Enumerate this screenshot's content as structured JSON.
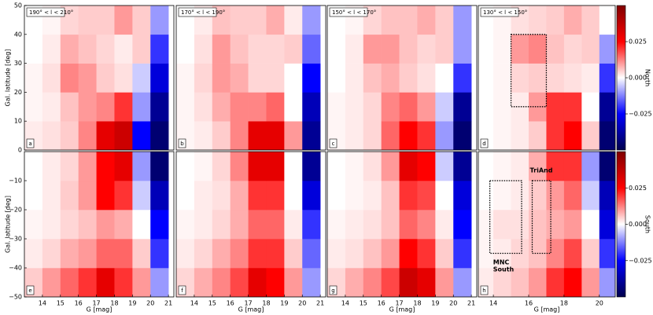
{
  "chart_data": [
    {
      "type": "heatmap",
      "title": "190° < l < 210°",
      "panel_label": "a",
      "ylabel": "Gal. latitude [deg]",
      "xlim": [
        13,
        21.3
      ],
      "ylim": [
        0,
        50
      ],
      "yticks": [
        0,
        10,
        20,
        30,
        40,
        50
      ],
      "x_edges": [
        13,
        14,
        15,
        16,
        17,
        18,
        19,
        20,
        21
      ],
      "y_edges": [
        0,
        10,
        20,
        30,
        40,
        50
      ],
      "z": [
        [
          0.002,
          0.003,
          0.005,
          0.012,
          0.03,
          0.035,
          -0.025,
          -0.045
        ],
        [
          0.001,
          0.002,
          0.006,
          0.01,
          0.012,
          0.02,
          -0.01,
          -0.04
        ],
        [
          0.001,
          0.003,
          0.012,
          0.01,
          0.005,
          0.003,
          -0.005,
          -0.03
        ],
        [
          0,
          0.002,
          0.008,
          0.006,
          0.004,
          0.002,
          0.005,
          -0.02
        ],
        [
          0,
          0.001,
          0.004,
          0.005,
          0.005,
          0.01,
          0.005,
          -0.01
        ]
      ]
    },
    {
      "type": "heatmap",
      "title": "170° < l < 190°",
      "panel_label": "b",
      "xlim": [
        13,
        21.3
      ],
      "ylim": [
        0,
        50
      ],
      "x_edges": [
        13,
        14,
        15,
        16,
        17,
        18,
        19,
        20,
        21
      ],
      "y_edges": [
        0,
        10,
        20,
        30,
        40,
        50
      ],
      "z": [
        [
          0.001,
          0.002,
          0.005,
          0.012,
          0.03,
          0.03,
          0.01,
          -0.04
        ],
        [
          0.001,
          0.003,
          0.008,
          0.012,
          0.012,
          0.015,
          0,
          -0.035
        ],
        [
          0.001,
          0.004,
          0.01,
          0.008,
          0.004,
          0.004,
          0,
          -0.025
        ],
        [
          0,
          0.003,
          0.01,
          0.006,
          0.004,
          0.004,
          0.005,
          -0.015
        ],
        [
          0,
          0.002,
          0.006,
          0.005,
          0.005,
          0.008,
          0.002,
          -0.01
        ]
      ]
    },
    {
      "type": "heatmap",
      "title": "150° < l < 170°",
      "panel_label": "c",
      "xlim": [
        13,
        21.3
      ],
      "ylim": [
        0,
        50
      ],
      "x_edges": [
        13,
        14,
        15,
        16,
        17,
        18,
        19,
        20,
        21
      ],
      "y_edges": [
        0,
        10,
        20,
        30,
        40,
        50
      ],
      "z": [
        [
          0.001,
          0.002,
          0.004,
          0.015,
          0.025,
          0.02,
          -0.01,
          -0.045
        ],
        [
          0.001,
          0.002,
          0.004,
          0.012,
          0.015,
          0.01,
          -0.005,
          -0.04
        ],
        [
          0,
          0.002,
          0.006,
          0.008,
          0.005,
          0.003,
          0,
          -0.02
        ],
        [
          0,
          0.002,
          0.01,
          0.01,
          0.006,
          0.004,
          0.005,
          -0.01
        ],
        [
          0,
          0.001,
          0.004,
          0.006,
          0.006,
          0.008,
          0.005,
          -0.01
        ]
      ]
    },
    {
      "type": "heatmap",
      "title": "130° < l < 150°",
      "panel_label": "d",
      "xlim": [
        13.15,
        20.9
      ],
      "ylim": [
        0,
        50
      ],
      "x_edges": [
        13,
        14,
        15,
        16,
        17,
        18,
        19,
        20,
        21
      ],
      "y_edges": [
        0,
        10,
        20,
        30,
        40,
        50
      ],
      "z": [
        [
          0,
          0.001,
          0.002,
          0.005,
          0.02,
          0.025,
          0.005,
          -0.045
        ],
        [
          0,
          0.001,
          0.002,
          0.01,
          0.02,
          0.02,
          0,
          -0.04
        ],
        [
          0,
          0.001,
          0.004,
          0.005,
          0.004,
          0.003,
          0.002,
          -0.02
        ],
        [
          0,
          0.001,
          0.01,
          0.012,
          0.006,
          0.004,
          0.005,
          -0.01
        ],
        [
          0,
          0.001,
          0.003,
          0.004,
          0.005,
          0.008,
          0.005,
          0
        ]
      ],
      "regions": [
        {
          "x": [
            15,
            17
          ],
          "y": [
            15,
            40
          ]
        }
      ],
      "colormap": "seismic",
      "colorbar": {
        "label": "North",
        "clim": [
          -0.05,
          0.05
        ],
        "ticks": [
          0.025,
          {
            "value": 0,
            "label": "0.000"
          },
          {
            "value": -0.025,
            "label": "−0.025"
          }
        ]
      }
    },
    {
      "type": "heatmap",
      "panel_label": "e",
      "ylabel": "Gal. latitude [deg]",
      "xlabel": "G [mag]",
      "xlim": [
        13,
        21.3
      ],
      "ylim": [
        -50,
        0
      ],
      "xticks": [
        14,
        15,
        16,
        17,
        18,
        19,
        20,
        21
      ],
      "yticks": [
        {
          "value": -50,
          "label": "−50"
        },
        {
          "value": -40,
          "label": "−40"
        },
        {
          "value": -30,
          "label": "−30"
        },
        {
          "value": -20,
          "label": "−20"
        },
        {
          "value": -10,
          "label": "−10"
        }
      ],
      "x_edges": [
        13,
        14,
        15,
        16,
        17,
        18,
        19,
        20,
        21
      ],
      "y_edges": [
        -50,
        -40,
        -30,
        -20,
        -10,
        0
      ],
      "z": [
        [
          0.005,
          0.01,
          0.015,
          0.02,
          0.03,
          0.02,
          0.01,
          -0.01
        ],
        [
          0.002,
          0.004,
          0.008,
          0.01,
          0.015,
          0.015,
          0.005,
          -0.02
        ],
        [
          0.001,
          0.002,
          0.004,
          0.006,
          0.01,
          0.008,
          0,
          -0.025
        ],
        [
          0,
          0.002,
          0.005,
          0.01,
          0.025,
          0.02,
          -0.005,
          -0.035
        ],
        [
          0,
          0.002,
          0.004,
          0.01,
          0.025,
          0.03,
          -0.01,
          -0.045
        ]
      ]
    },
    {
      "type": "heatmap",
      "panel_label": "f",
      "xlabel": "G [mag]",
      "xlim": [
        13,
        21.3
      ],
      "ylim": [
        -50,
        0
      ],
      "xticks": [
        14,
        15,
        16,
        17,
        18,
        19,
        20,
        21
      ],
      "x_edges": [
        13,
        14,
        15,
        16,
        17,
        18,
        19,
        20,
        21
      ],
      "y_edges": [
        -50,
        -40,
        -30,
        -20,
        -10,
        0
      ],
      "z": [
        [
          0.004,
          0.008,
          0.012,
          0.018,
          0.03,
          0.025,
          0.01,
          -0.01
        ],
        [
          0.002,
          0.004,
          0.008,
          0.012,
          0.02,
          0.02,
          0.005,
          -0.015
        ],
        [
          0.001,
          0.002,
          0.004,
          0.008,
          0.015,
          0.015,
          0.002,
          -0.02
        ],
        [
          0,
          0.002,
          0.003,
          0.008,
          0.02,
          0.02,
          0,
          -0.03
        ],
        [
          0,
          0.001,
          0.004,
          0.012,
          0.03,
          0.03,
          0,
          -0.04
        ]
      ]
    },
    {
      "type": "heatmap",
      "panel_label": "g",
      "xlabel": "G [mag]",
      "xlim": [
        13,
        21.3
      ],
      "ylim": [
        -50,
        0
      ],
      "xticks": [
        14,
        15,
        16,
        17,
        18,
        19,
        20,
        21
      ],
      "x_edges": [
        13,
        14,
        15,
        16,
        17,
        18,
        19,
        20,
        21
      ],
      "y_edges": [
        -50,
        -40,
        -30,
        -20,
        -10,
        0
      ],
      "z": [
        [
          0.004,
          0.008,
          0.012,
          0.018,
          0.035,
          0.03,
          0.01,
          -0.01
        ],
        [
          0.002,
          0.003,
          0.006,
          0.01,
          0.025,
          0.02,
          0.005,
          -0.02
        ],
        [
          0.001,
          0.002,
          0.003,
          0.006,
          0.015,
          0.012,
          0.002,
          -0.025
        ],
        [
          0,
          0.001,
          0.002,
          0.006,
          0.02,
          0.018,
          0,
          -0.03
        ],
        [
          0,
          0.001,
          0.003,
          0.01,
          0.03,
          0.025,
          -0.005,
          -0.04
        ]
      ]
    },
    {
      "type": "heatmap",
      "panel_label": "h",
      "xlabel": "G [mag]",
      "xlim": [
        13.15,
        20.9
      ],
      "ylim": [
        -50,
        0
      ],
      "xticks": [
        14,
        16,
        18,
        20
      ],
      "x_edges": [
        13,
        14,
        15,
        16,
        17,
        18,
        19,
        20,
        21
      ],
      "y_edges": [
        -50,
        -40,
        -30,
        -20,
        -10,
        0
      ],
      "z": [
        [
          0.002,
          0.004,
          0.006,
          0.01,
          0.02,
          0.025,
          0.01,
          -0.01
        ],
        [
          0.001,
          0.002,
          0.004,
          0.006,
          0.012,
          0.018,
          0.005,
          -0.02
        ],
        [
          0.001,
          0.003,
          0.003,
          0.006,
          0.008,
          0.01,
          0,
          -0.03
        ],
        [
          0,
          0.001,
          0.002,
          0.005,
          0.01,
          0.015,
          -0.005,
          -0.035
        ],
        [
          0,
          0.001,
          0.002,
          0.008,
          0.02,
          0.02,
          -0.01,
          -0.045
        ]
      ],
      "regions": [
        {
          "x": [
            13.8,
            15.6
          ],
          "y": [
            -35,
            -10
          ]
        },
        {
          "x": [
            16.2,
            17.25
          ],
          "y": [
            -35,
            -10
          ]
        }
      ],
      "annotations": [
        "TriAnd",
        "MNC",
        "South"
      ],
      "colormap": "seismic",
      "colorbar": {
        "label": "South",
        "clim": [
          -0.05,
          0.05
        ],
        "ticks": [
          0.025,
          {
            "value": 0,
            "label": "0.000"
          },
          {
            "value": -0.025,
            "label": "−0.025"
          }
        ]
      }
    }
  ]
}
